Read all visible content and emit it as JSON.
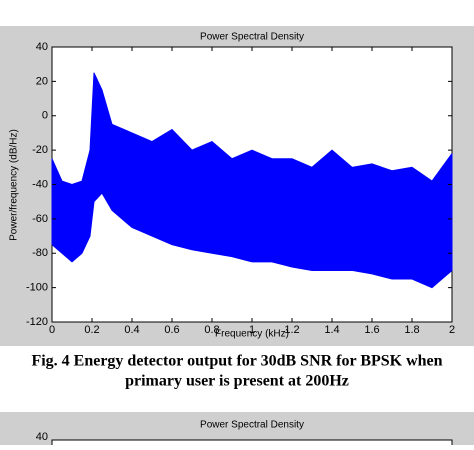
{
  "chart_data": [
    {
      "type": "band",
      "title": "Power Spectral Density",
      "x_label": "Frequency (kHz)",
      "y_label": "Power/frequency (dB/Hz)",
      "x": [
        0,
        0.05,
        0.1,
        0.15,
        0.19,
        0.21,
        0.25,
        0.3,
        0.4,
        0.5,
        0.6,
        0.7,
        0.8,
        0.9,
        1.0,
        1.1,
        1.2,
        1.3,
        1.4,
        1.5,
        1.6,
        1.7,
        1.8,
        1.9,
        1.95,
        2.0
      ],
      "series": [
        {
          "color": "#0000ff",
          "values": [
            -25,
            -38,
            -40,
            -38,
            -20,
            25,
            15,
            -5,
            -10,
            -15,
            -8,
            -20,
            -15,
            -25,
            -20,
            -25,
            -25,
            -30,
            -20,
            -30,
            -28,
            -32,
            -30,
            -38,
            -30,
            -22
          ]
        },
        {
          "color": "#0000ff",
          "values": [
            -75,
            -80,
            -85,
            -80,
            -70,
            -50,
            -45,
            -55,
            -65,
            -70,
            -75,
            -78,
            -80,
            -82,
            -85,
            -85,
            -88,
            -90,
            -90,
            -90,
            -92,
            -95,
            -95,
            -100,
            -95,
            -90
          ]
        }
      ],
      "xlim": [
        0,
        2
      ],
      "xticks": [
        0,
        0.2,
        0.4,
        0.6,
        0.8,
        1,
        1.2,
        1.4,
        1.6,
        1.8,
        2
      ],
      "ylim": [
        -120,
        40
      ],
      "yticks": [
        -120,
        -100,
        -80,
        -60,
        -40,
        -20,
        0,
        20,
        40
      ],
      "grid": false
    },
    {
      "type": "line",
      "title": "Power Spectral Density",
      "yticks": [
        40
      ]
    }
  ],
  "caption": [
    "Fig. 4 Energy detector output for 30dB SNR for BPSK when",
    "primary user is present at 200Hz"
  ]
}
